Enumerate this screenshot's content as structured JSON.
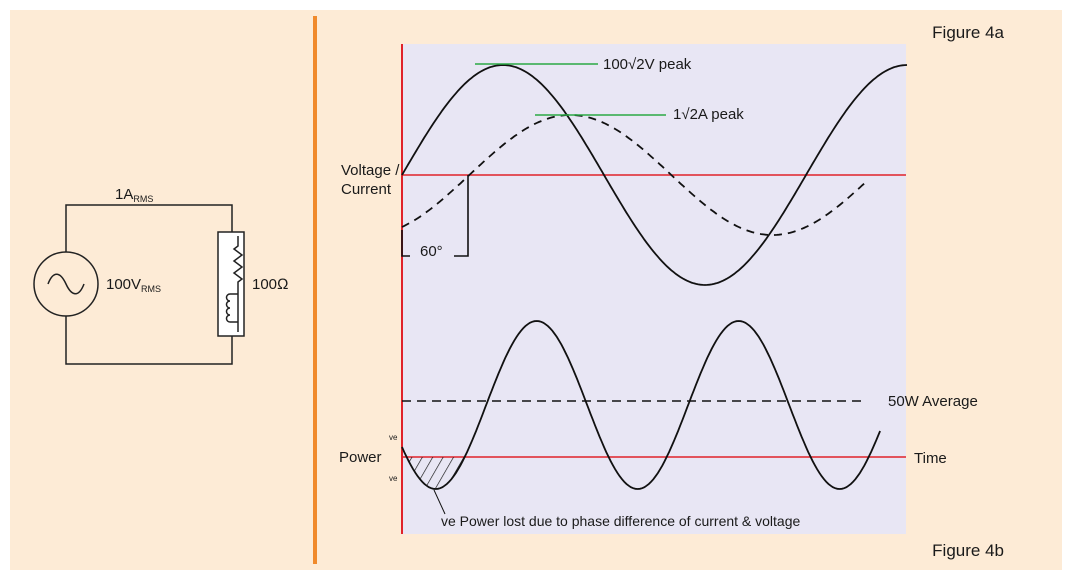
{
  "colors": {
    "background": "#fdebd6",
    "plot_area": "#e8e6f4",
    "divider": "#f08a2c",
    "axis": "#e0222a",
    "reference_line": "#2aa845",
    "curve": "#111111"
  },
  "circuit": {
    "current_main": "1A",
    "current_sub": "RMS",
    "source_main": "100V",
    "source_sub": "RMS",
    "resistance": "100Ω",
    "source_icon": "ac-source-icon",
    "load_icon": "resistor-inductor-icon"
  },
  "figure_a": {
    "caption": "Figure 4a",
    "axis_label_line1": "Voltage /",
    "axis_label_line2": "Current",
    "voltage_peak_label": "100√2V peak",
    "current_peak_label": "1√2A peak",
    "phase_label": "60°"
  },
  "figure_b": {
    "caption": "Figure 4b",
    "axis_label": "Power",
    "average_label": "50W Average",
    "time_label": "Time",
    "positive_mark": "ve",
    "negative_mark": "ve",
    "lost_power_note": "ve Power lost due to phase difference of current & voltage"
  }
}
